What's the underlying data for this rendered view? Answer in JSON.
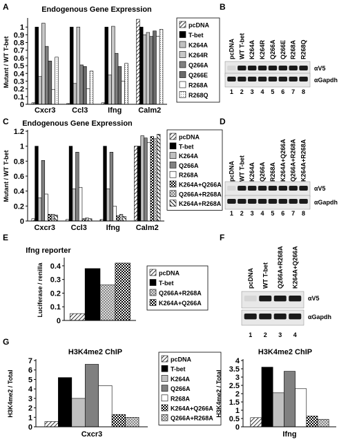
{
  "colors": {
    "pcDNA": "#ffffff",
    "T-bet": "#000000",
    "K264A": "#c0c0c0",
    "K264R": "#c8c8c8",
    "Q266A": "#808080",
    "Q266E": "#6a6a6a",
    "R268A": "#ffffff",
    "R268Q": "#e6e6e6",
    "K264A+Q266A": "#404040",
    "Q266A+R268A": "#a8a8a8",
    "K264A+R268A": "#9a9a9a"
  },
  "panels": {
    "A": {
      "letter": "A"
    },
    "B": {
      "letter": "B",
      "lane_labels": [
        "pcDNA",
        "WT T-bet",
        "K264A",
        "K264R",
        "Q266A",
        "Q266E",
        "R268A",
        "R268Q"
      ],
      "lane_numbers": [
        "1",
        "2",
        "3",
        "4",
        "5",
        "6",
        "7",
        "8"
      ],
      "band_labels": [
        "αV5",
        "αGapdh"
      ]
    },
    "C": {
      "letter": "C"
    },
    "D": {
      "letter": "D",
      "lane_labels": [
        "pcDNA",
        "WT T-bet",
        "K264A",
        "Q266A",
        "R268A",
        "K264A+Q266A",
        "Q266A+R268A",
        "K264A+R268A"
      ],
      "lane_numbers": [
        "1",
        "2",
        "3",
        "4",
        "5",
        "6",
        "7",
        "8"
      ],
      "band_labels": [
        "αV5",
        "αGapdh"
      ]
    },
    "E": {
      "letter": "E"
    },
    "F": {
      "letter": "F",
      "lane_labels": [
        "pcDNA",
        "WT T-bet",
        "Q266A+R268A",
        "K264A+Q266A"
      ],
      "lane_numbers": [
        "1",
        "2",
        "3",
        "4"
      ],
      "band_labels": [
        "αV5",
        "αGapdh"
      ]
    },
    "G": {
      "letter": "G"
    }
  },
  "chart_data": [
    {
      "id": "A",
      "type": "bar",
      "title": "Endogenous Gene Expression",
      "ylabel": "Mutant / WT T-bet",
      "ylim": [
        0,
        1.1
      ],
      "yticks": [
        "0",
        "0.1",
        "0.2",
        "0.3",
        "0.4",
        "0.5",
        "0.6",
        "0.7",
        "0.8",
        "0.9",
        "1"
      ],
      "categories": [
        "Cxcr3",
        "Ccl3",
        "Ifng",
        "Calm2"
      ],
      "series": [
        {
          "name": "pcDNA",
          "values": [
            0.02,
            0.01,
            0.02,
            1.1
          ]
        },
        {
          "name": "T-bet",
          "values": [
            1.0,
            1.0,
            1.0,
            1.0
          ]
        },
        {
          "name": "K264A",
          "values": [
            0.36,
            0.27,
            0.38,
            0.9
          ]
        },
        {
          "name": "K264R",
          "values": [
            1.05,
            1.0,
            1.01,
            0.93
          ]
        },
        {
          "name": "Q266A",
          "values": [
            0.75,
            0.51,
            0.66,
            0.88
          ]
        },
        {
          "name": "Q266E",
          "values": [
            0.56,
            0.49,
            0.49,
            0.95
          ]
        },
        {
          "name": "R268A",
          "values": [
            0.19,
            0.2,
            0.3,
            0.88
          ]
        },
        {
          "name": "R268Q",
          "values": [
            0.61,
            0.43,
            0.53,
            0.97
          ]
        }
      ],
      "legend": "right"
    },
    {
      "id": "C",
      "type": "bar",
      "title": "Endogenous Gene Expression",
      "ylabel": "Mutant / WT T-bet",
      "ylim": [
        0,
        1.2
      ],
      "yticks": [
        "0",
        "0.2",
        "0.4",
        "0.6",
        "0.8",
        "1",
        "1.2"
      ],
      "categories": [
        "Cxcr3",
        "Ccl3",
        "Ifng",
        "Calm2"
      ],
      "series": [
        {
          "name": "pcDNA",
          "values": [
            0.03,
            0.02,
            0.02,
            1.0
          ]
        },
        {
          "name": "T-bet",
          "values": [
            1.0,
            1.0,
            1.0,
            1.0
          ]
        },
        {
          "name": "K264A",
          "values": [
            0.31,
            0.43,
            0.43,
            1.14
          ]
        },
        {
          "name": "Q266A",
          "values": [
            0.81,
            0.92,
            0.92,
            1.11
          ]
        },
        {
          "name": "R268A",
          "values": [
            0.36,
            0.45,
            0.2,
            1.05
          ]
        },
        {
          "name": "K264A+Q266A",
          "values": [
            0.09,
            0.03,
            0.07,
            1.13
          ]
        },
        {
          "name": "Q266A+R268A",
          "values": [
            0.09,
            0.04,
            0.09,
            1.1
          ]
        },
        {
          "name": "K264A+R268A",
          "values": [
            0.08,
            0.03,
            0.06,
            1.16
          ]
        }
      ],
      "legend": "right"
    },
    {
      "id": "E",
      "type": "bar",
      "title": "Ifng reporter",
      "ylabel": "Luciferase / renilla",
      "ylim": [
        0,
        0.45
      ],
      "yticks": [
        "0",
        "0.1",
        "0.2",
        "0.3",
        "0.4"
      ],
      "categories": [
        ""
      ],
      "series": [
        {
          "name": "pcDNA",
          "values": [
            0.05
          ]
        },
        {
          "name": "T-bet",
          "values": [
            0.38
          ]
        },
        {
          "name": "Q266A+R268A",
          "values": [
            0.26
          ]
        },
        {
          "name": "K264A+Q266A",
          "values": [
            0.42
          ]
        }
      ],
      "legend": "right"
    },
    {
      "id": "G1",
      "type": "bar",
      "title": "H3K4me2 ChIP",
      "ylabel": "H3K4me2 / Total",
      "xlabel": "Cxcr3",
      "ylim": [
        0,
        7
      ],
      "yticks": [
        "0",
        "1",
        "2",
        "3",
        "4",
        "5",
        "6",
        "7"
      ],
      "categories": [
        ""
      ],
      "series": [
        {
          "name": "pcDNA",
          "values": [
            0.55
          ]
        },
        {
          "name": "T-bet",
          "values": [
            5.2
          ]
        },
        {
          "name": "K264A",
          "values": [
            3.0
          ]
        },
        {
          "name": "Q266A",
          "values": [
            6.6
          ]
        },
        {
          "name": "R268A",
          "values": [
            4.35
          ]
        },
        {
          "name": "K264A+Q266A",
          "values": [
            1.3
          ]
        },
        {
          "name": "Q266A+R268A",
          "values": [
            1.0
          ]
        }
      ],
      "legend": "right"
    },
    {
      "id": "G2",
      "type": "bar",
      "title": "H3K4me2 ChIP",
      "ylabel": "H3K4me2 / Total",
      "xlabel": "Ifng",
      "ylim": [
        0,
        4
      ],
      "yticks": [
        "0",
        "0.5",
        "1",
        "1.5",
        "2",
        "2.5",
        "3",
        "3.5",
        "4"
      ],
      "categories": [
        ""
      ],
      "series": [
        {
          "name": "pcDNA",
          "values": [
            0.55
          ]
        },
        {
          "name": "T-bet",
          "values": [
            3.6
          ]
        },
        {
          "name": "K264A",
          "values": [
            2.05
          ]
        },
        {
          "name": "Q266A",
          "values": [
            3.35
          ]
        },
        {
          "name": "R268A",
          "values": [
            2.3
          ]
        },
        {
          "name": "K264A+Q266A",
          "values": [
            0.65
          ]
        },
        {
          "name": "Q266A+R268A",
          "values": [
            0.45
          ]
        }
      ]
    }
  ]
}
